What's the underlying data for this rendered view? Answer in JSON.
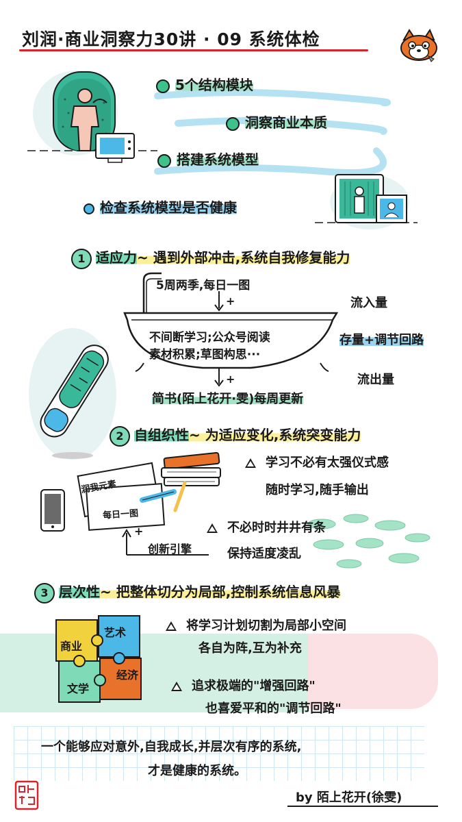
{
  "title": "刘润·商业洞察力30讲 · 09  系统体检",
  "intro": {
    "items": [
      "5个结构模块",
      "洞察商业本质",
      "搭建系统模型"
    ],
    "check": "检查系统模型是否健康"
  },
  "s1": {
    "num": "1",
    "heading": "适应力",
    "desc": "~ 遇到外部冲击,系统自我修复能力",
    "inflow_src": "5周两季,每日一图",
    "plus": "+",
    "tub_l1": "不间断学习;公众号阅读",
    "tub_l2": "素材积累;草图构思···",
    "outflow_dst": "简书(陌上花开·雯)每周更新",
    "inflow": "流入量",
    "stock": "存量+调节回路",
    "outflow": "流出量"
  },
  "s2": {
    "num": "2",
    "heading": "自组织性",
    "desc": "~ 为适应变化,系统突变能力",
    "p1_l1": "学习不必有太强仪式感",
    "p1_l2": "随时学习,随手输出",
    "p2_l1": "不必时时井井有条",
    "p2_l2": "保持适度凌乱",
    "card1": "润我元素",
    "card2": "每日一图",
    "engine": "创新引擎",
    "plus": "+"
  },
  "s3": {
    "num": "3",
    "heading": "层次性",
    "desc": "~ 把整体切分为局部,控制系统信息风暴",
    "p1_l1": "将学习计划切割为局部小空间",
    "p1_l2": "各自为阵,互为补充",
    "p2_l1": "追求极端的\"增强回路\"",
    "p2_l2": "也喜爱平和的\"调节回路\"",
    "puzzle": [
      "商业",
      "艺术",
      "文学",
      "经济"
    ]
  },
  "summary": {
    "l1": "一个能够应对意外,自我成长,并层次有序的系统,",
    "l2": "才是健康的系统。"
  },
  "byline": "by 陌上花开(徐雯)",
  "colors": {
    "accent_red": "#d8232a",
    "green": "#3cc28a",
    "highlight_green": "#a5e3c6",
    "highlight_blue": "#9ad3ef",
    "highlight_yellow": "#fbef9a"
  }
}
